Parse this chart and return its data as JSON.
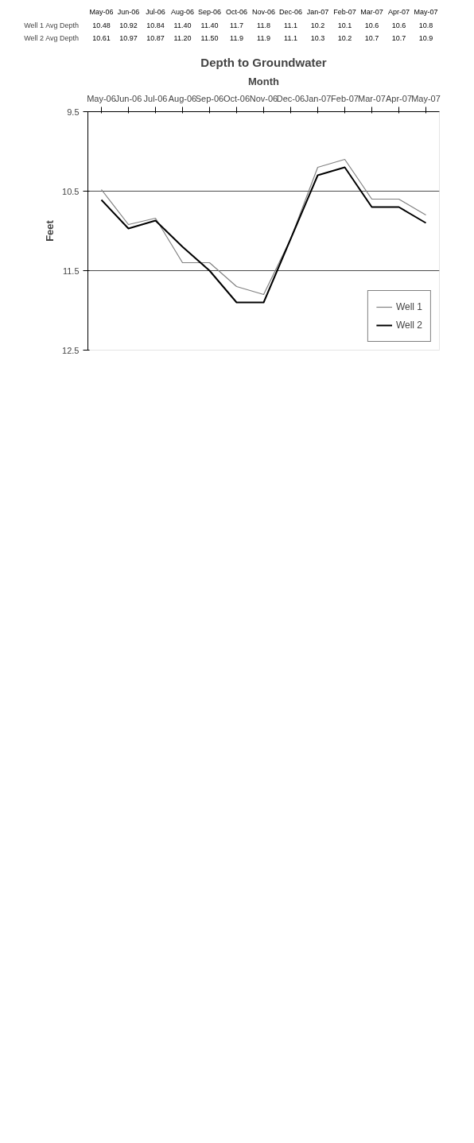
{
  "chart_data": {
    "type": "line",
    "title": "Depth to Groundwater",
    "xlabel": "Month",
    "ylabel": "Feet",
    "categories": [
      "May-06",
      "Jun-06",
      "Jul-06",
      "Aug-06",
      "Sep-06",
      "Oct-06",
      "Nov-06",
      "Dec-06",
      "Jan-07",
      "Feb-07",
      "Mar-07",
      "Apr-07",
      "May-07"
    ],
    "series": [
      {
        "name": "Well 1",
        "color": "#808080",
        "values": [
          10.48,
          10.92,
          10.84,
          11.4,
          11.4,
          11.7,
          11.8,
          11.1,
          10.2,
          10.1,
          10.6,
          10.6,
          10.8
        ],
        "value_labels": [
          "10.48",
          "10.92",
          "10.84",
          "11.40",
          "11.40",
          "11.7",
          "11.8",
          "11.1",
          "10.2",
          "10.1",
          "10.6",
          "10.6",
          "10.8"
        ]
      },
      {
        "name": "Well 2",
        "color": "#000000",
        "values": [
          10.61,
          10.97,
          10.87,
          11.2,
          11.5,
          11.9,
          11.9,
          11.1,
          10.3,
          10.2,
          10.7,
          10.7,
          10.9
        ],
        "value_labels": [
          "10.61",
          "10.97",
          "10.87",
          "11.20",
          "11.50",
          "11.9",
          "11.9",
          "11.1",
          "10.3",
          "10.2",
          "10.7",
          "10.7",
          "10.9"
        ]
      }
    ],
    "annotations": [
      "Well 1 Avg Depth",
      "Well 2 Avg Depth"
    ],
    "ylim": [
      12.5,
      9.5
    ],
    "yticks": [
      9.5,
      10.5,
      11.5,
      12.5
    ],
    "grid": "y",
    "legend": "bottom right",
    "marker": "none",
    "line_style": "solid"
  }
}
